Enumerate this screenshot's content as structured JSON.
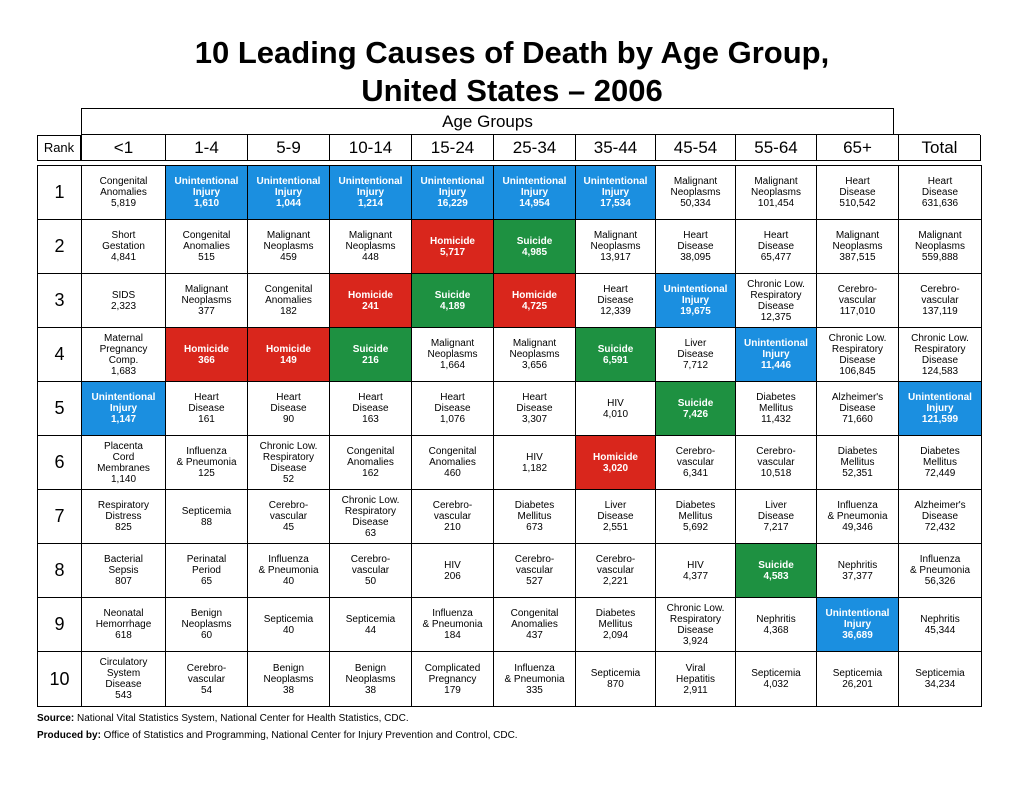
{
  "title_line1": "10 Leading Causes of Death by Age Group,",
  "title_line2": "United States – 2006",
  "age_groups_label": "Age Groups",
  "rank_header": "Rank",
  "colors": {
    "unintentional_injury": "#1b8fe0",
    "homicide": "#d9261c",
    "suicide": "#1e9141"
  },
  "chart_data": {
    "type": "table",
    "title": "10 Leading Causes of Death by Age Group, United States – 2006",
    "columns": [
      "<1",
      "1-4",
      "5-9",
      "10-14",
      "15-24",
      "25-34",
      "35-44",
      "45-54",
      "55-64",
      "65+",
      "Total"
    ],
    "ranks": [
      "1",
      "2",
      "3",
      "4",
      "5",
      "6",
      "7",
      "8",
      "9",
      "10"
    ],
    "rows": [
      [
        {
          "cause": "Congenital\nAnomalies",
          "value": "5,819"
        },
        {
          "cause": "Unintentional\nInjury",
          "value": "1,610",
          "cat": "ui"
        },
        {
          "cause": "Unintentional\nInjury",
          "value": "1,044",
          "cat": "ui"
        },
        {
          "cause": "Unintentional\nInjury",
          "value": "1,214",
          "cat": "ui"
        },
        {
          "cause": "Unintentional\nInjury",
          "value": "16,229",
          "cat": "ui"
        },
        {
          "cause": "Unintentional\nInjury",
          "value": "14,954",
          "cat": "ui"
        },
        {
          "cause": "Unintentional\nInjury",
          "value": "17,534",
          "cat": "ui"
        },
        {
          "cause": "Malignant\nNeoplasms",
          "value": "50,334"
        },
        {
          "cause": "Malignant\nNeoplasms",
          "value": "101,454"
        },
        {
          "cause": "Heart\nDisease",
          "value": "510,542"
        },
        {
          "cause": "Heart\nDisease",
          "value": "631,636"
        }
      ],
      [
        {
          "cause": "Short\nGestation",
          "value": "4,841"
        },
        {
          "cause": "Congenital\nAnomalies",
          "value": "515"
        },
        {
          "cause": "Malignant\nNeoplasms",
          "value": "459"
        },
        {
          "cause": "Malignant\nNeoplasms",
          "value": "448"
        },
        {
          "cause": "Homicide",
          "value": "5,717",
          "cat": "hom"
        },
        {
          "cause": "Suicide",
          "value": "4,985",
          "cat": "sui"
        },
        {
          "cause": "Malignant\nNeoplasms",
          "value": "13,917"
        },
        {
          "cause": "Heart\nDisease",
          "value": "38,095"
        },
        {
          "cause": "Heart\nDisease",
          "value": "65,477"
        },
        {
          "cause": "Malignant\nNeoplasms",
          "value": "387,515"
        },
        {
          "cause": "Malignant\nNeoplasms",
          "value": "559,888"
        }
      ],
      [
        {
          "cause": "SIDS",
          "value": "2,323"
        },
        {
          "cause": "Malignant\nNeoplasms",
          "value": "377"
        },
        {
          "cause": "Congenital\nAnomalies",
          "value": "182"
        },
        {
          "cause": "Homicide",
          "value": "241",
          "cat": "hom"
        },
        {
          "cause": "Suicide",
          "value": "4,189",
          "cat": "sui"
        },
        {
          "cause": "Homicide",
          "value": "4,725",
          "cat": "hom"
        },
        {
          "cause": "Heart\nDisease",
          "value": "12,339"
        },
        {
          "cause": "Unintentional\nInjury",
          "value": "19,675",
          "cat": "ui"
        },
        {
          "cause": "Chronic Low.\nRespiratory\nDisease",
          "value": "12,375"
        },
        {
          "cause": "Cerebro-\nvascular",
          "value": "117,010"
        },
        {
          "cause": "Cerebro-\nvascular",
          "value": "137,119"
        }
      ],
      [
        {
          "cause": "Maternal\nPregnancy\nComp.",
          "value": "1,683"
        },
        {
          "cause": "Homicide",
          "value": "366",
          "cat": "hom"
        },
        {
          "cause": "Homicide",
          "value": "149",
          "cat": "hom"
        },
        {
          "cause": "Suicide",
          "value": "216",
          "cat": "sui"
        },
        {
          "cause": "Malignant\nNeoplasms",
          "value": "1,664"
        },
        {
          "cause": "Malignant\nNeoplasms",
          "value": "3,656"
        },
        {
          "cause": "Suicide",
          "value": "6,591",
          "cat": "sui"
        },
        {
          "cause": "Liver\nDisease",
          "value": "7,712"
        },
        {
          "cause": "Unintentional\nInjury",
          "value": "11,446",
          "cat": "ui"
        },
        {
          "cause": "Chronic Low.\nRespiratory\nDisease",
          "value": "106,845"
        },
        {
          "cause": "Chronic Low.\nRespiratory\nDisease",
          "value": "124,583"
        }
      ],
      [
        {
          "cause": "Unintentional\nInjury",
          "value": "1,147",
          "cat": "ui"
        },
        {
          "cause": "Heart\nDisease",
          "value": "161"
        },
        {
          "cause": "Heart\nDisease",
          "value": "90"
        },
        {
          "cause": "Heart\nDisease",
          "value": "163"
        },
        {
          "cause": "Heart\nDisease",
          "value": "1,076"
        },
        {
          "cause": "Heart\nDisease",
          "value": "3,307"
        },
        {
          "cause": "HIV",
          "value": "4,010"
        },
        {
          "cause": "Suicide",
          "value": "7,426",
          "cat": "sui"
        },
        {
          "cause": "Diabetes\nMellitus",
          "value": "11,432"
        },
        {
          "cause": "Alzheimer's\nDisease",
          "value": "71,660"
        },
        {
          "cause": "Unintentional\nInjury",
          "value": "121,599",
          "cat": "ui"
        }
      ],
      [
        {
          "cause": "Placenta\nCord\nMembranes",
          "value": "1,140"
        },
        {
          "cause": "Influenza\n& Pneumonia",
          "value": "125"
        },
        {
          "cause": "Chronic Low.\nRespiratory\nDisease",
          "value": "52"
        },
        {
          "cause": "Congenital\nAnomalies",
          "value": "162"
        },
        {
          "cause": "Congenital\nAnomalies",
          "value": "460"
        },
        {
          "cause": "HIV",
          "value": "1,182"
        },
        {
          "cause": "Homicide",
          "value": "3,020",
          "cat": "hom"
        },
        {
          "cause": "Cerebro-\nvascular",
          "value": "6,341"
        },
        {
          "cause": "Cerebro-\nvascular",
          "value": "10,518"
        },
        {
          "cause": "Diabetes\nMellitus",
          "value": "52,351"
        },
        {
          "cause": "Diabetes\nMellitus",
          "value": "72,449"
        }
      ],
      [
        {
          "cause": "Respiratory\nDistress",
          "value": "825"
        },
        {
          "cause": "Septicemia",
          "value": "88"
        },
        {
          "cause": "Cerebro-\nvascular",
          "value": "45"
        },
        {
          "cause": "Chronic Low.\nRespiratory\nDisease",
          "value": "63"
        },
        {
          "cause": "Cerebro-\nvascular",
          "value": "210"
        },
        {
          "cause": "Diabetes\nMellitus",
          "value": "673"
        },
        {
          "cause": "Liver\nDisease",
          "value": "2,551"
        },
        {
          "cause": "Diabetes\nMellitus",
          "value": "5,692"
        },
        {
          "cause": "Liver\nDisease",
          "value": "7,217"
        },
        {
          "cause": "Influenza\n& Pneumonia",
          "value": "49,346"
        },
        {
          "cause": "Alzheimer's\nDisease",
          "value": "72,432"
        }
      ],
      [
        {
          "cause": "Bacterial\nSepsis",
          "value": "807"
        },
        {
          "cause": "Perinatal\nPeriod",
          "value": "65"
        },
        {
          "cause": "Influenza\n& Pneumonia",
          "value": "40"
        },
        {
          "cause": "Cerebro-\nvascular",
          "value": "50"
        },
        {
          "cause": "HIV",
          "value": "206"
        },
        {
          "cause": "Cerebro-\nvascular",
          "value": "527"
        },
        {
          "cause": "Cerebro-\nvascular",
          "value": "2,221"
        },
        {
          "cause": "HIV",
          "value": "4,377"
        },
        {
          "cause": "Suicide",
          "value": "4,583",
          "cat": "sui"
        },
        {
          "cause": "Nephritis",
          "value": "37,377"
        },
        {
          "cause": "Influenza\n& Pneumonia",
          "value": "56,326"
        }
      ],
      [
        {
          "cause": "Neonatal\nHemorrhage",
          "value": "618"
        },
        {
          "cause": "Benign\nNeoplasms",
          "value": "60"
        },
        {
          "cause": "Septicemia",
          "value": "40"
        },
        {
          "cause": "Septicemia",
          "value": "44"
        },
        {
          "cause": "Influenza\n& Pneumonia",
          "value": "184"
        },
        {
          "cause": "Congenital\nAnomalies",
          "value": "437"
        },
        {
          "cause": "Diabetes\nMellitus",
          "value": "2,094"
        },
        {
          "cause": "Chronic Low.\nRespiratory\nDisease",
          "value": "3,924"
        },
        {
          "cause": "Nephritis",
          "value": "4,368"
        },
        {
          "cause": "Unintentional\nInjury",
          "value": "36,689",
          "cat": "ui"
        },
        {
          "cause": "Nephritis",
          "value": "45,344"
        }
      ],
      [
        {
          "cause": "Circulatory\nSystem\nDisease",
          "value": "543"
        },
        {
          "cause": "Cerebro-\nvascular",
          "value": "54"
        },
        {
          "cause": "Benign\nNeoplasms",
          "value": "38"
        },
        {
          "cause": "Benign\nNeoplasms",
          "value": "38"
        },
        {
          "cause": "Complicated\nPregnancy",
          "value": "179"
        },
        {
          "cause": "Influenza\n& Pneumonia",
          "value": "335"
        },
        {
          "cause": "Septicemia",
          "value": "870"
        },
        {
          "cause": "Viral\nHepatitis",
          "value": "2,911"
        },
        {
          "cause": "Septicemia",
          "value": "4,032"
        },
        {
          "cause": "Septicemia",
          "value": "26,201"
        },
        {
          "cause": "Septicemia",
          "value": "34,234"
        }
      ]
    ]
  },
  "footer": {
    "source_label": "Source:",
    "source_text": " National Vital Statistics System, National Center for Health Statistics, CDC.",
    "produced_label": "Produced by:",
    "produced_text": " Office of Statistics and Programming, National Center for Injury Prevention and Control, CDC."
  }
}
